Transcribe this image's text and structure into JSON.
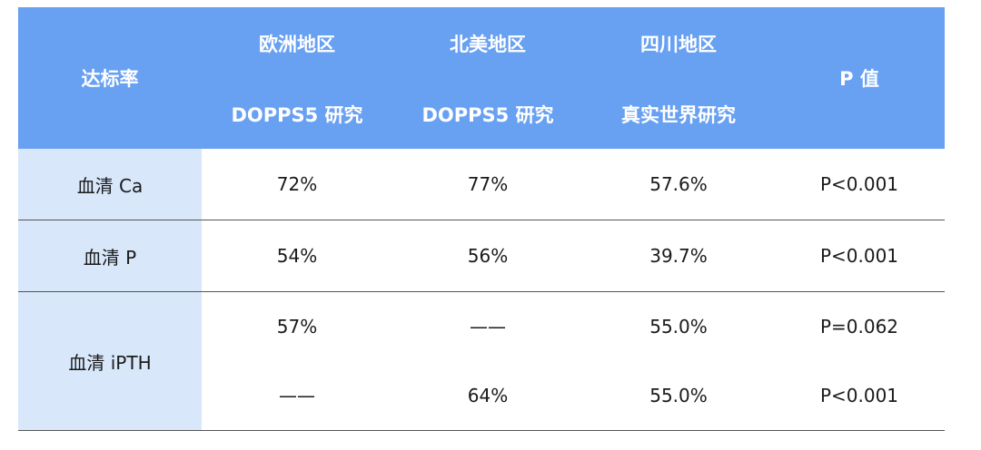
{
  "header": {
    "rate_label": "达标率",
    "europe_region": "欧洲地区",
    "europe_study": "DOPPS5 研究",
    "na_region": "北美地区",
    "na_study": "DOPPS5 研究",
    "sichuan_region": "四川地区",
    "sichuan_study": "真实世界研究",
    "p_value": "P 值"
  },
  "rows": [
    {
      "label": "血清 Ca",
      "europe": "72%",
      "na": "77%",
      "sichuan": "57.6%",
      "p": "P<0.001"
    },
    {
      "label": "血清 P",
      "europe": "54%",
      "na": "56%",
      "sichuan": "39.7%",
      "p": "P<0.001"
    },
    {
      "label": "血清 iPTH",
      "sub": [
        {
          "europe": "57%",
          "na": "——",
          "sichuan": "55.0%",
          "p": "P=0.062"
        },
        {
          "europe": "——",
          "na": "64%",
          "sichuan": "55.0%",
          "p": "P<0.001"
        }
      ]
    }
  ],
  "colors": {
    "header_bg": "#68a0f2",
    "label_bg": "#d9e7fb",
    "header_text": "#ffffff"
  }
}
